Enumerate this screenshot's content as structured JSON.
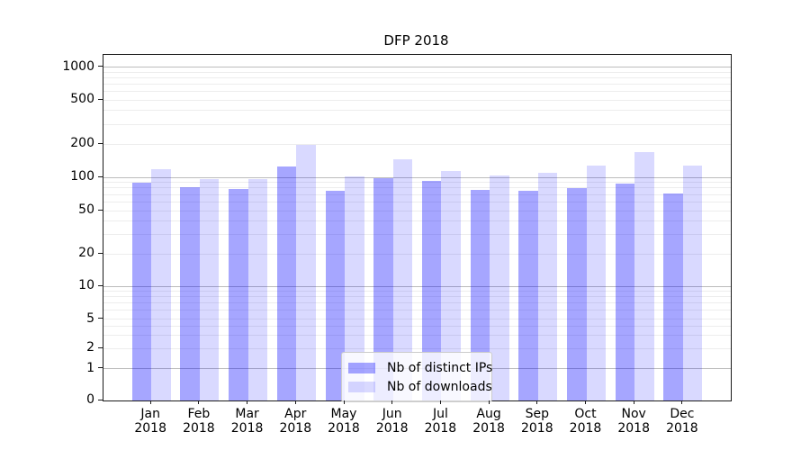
{
  "title": "DFP 2018",
  "chart_data": {
    "type": "bar",
    "title": "DFP 2018",
    "xlabel": "",
    "ylabel": "",
    "yscale": "symlog",
    "ylim": [
      0,
      1300
    ],
    "grid": true,
    "legend_position": "lower center",
    "y_ticks": [
      0,
      1,
      2,
      5,
      10,
      20,
      50,
      100,
      200,
      500,
      1000
    ],
    "months": [
      "Jan",
      "Feb",
      "Mar",
      "Apr",
      "May",
      "Jun",
      "Jul",
      "Aug",
      "Sep",
      "Oct",
      "Nov",
      "Dec"
    ],
    "year": "2018",
    "categories": [
      "Jan 2018",
      "Feb 2018",
      "Mar 2018",
      "Apr 2018",
      "May 2018",
      "Jun 2018",
      "Jul 2018",
      "Aug 2018",
      "Sep 2018",
      "Oct 2018",
      "Nov 2018",
      "Dec 2018"
    ],
    "series": [
      {
        "name": "Nb of distinct IPs",
        "color": "rgba(0,0,255,0.35)",
        "values": [
          90,
          82,
          79,
          126,
          76,
          98,
          93,
          77,
          75,
          80,
          88,
          71
        ]
      },
      {
        "name": "Nb of downloads",
        "color": "rgba(0,0,255,0.15)",
        "values": [
          118,
          96,
          97,
          195,
          101,
          145,
          114,
          104,
          110,
          128,
          170,
          127
        ]
      }
    ],
    "colors": {
      "grid_major": "#bcbcbc",
      "grid_minor": "#ededed",
      "spine": "#1a1a1a"
    }
  }
}
